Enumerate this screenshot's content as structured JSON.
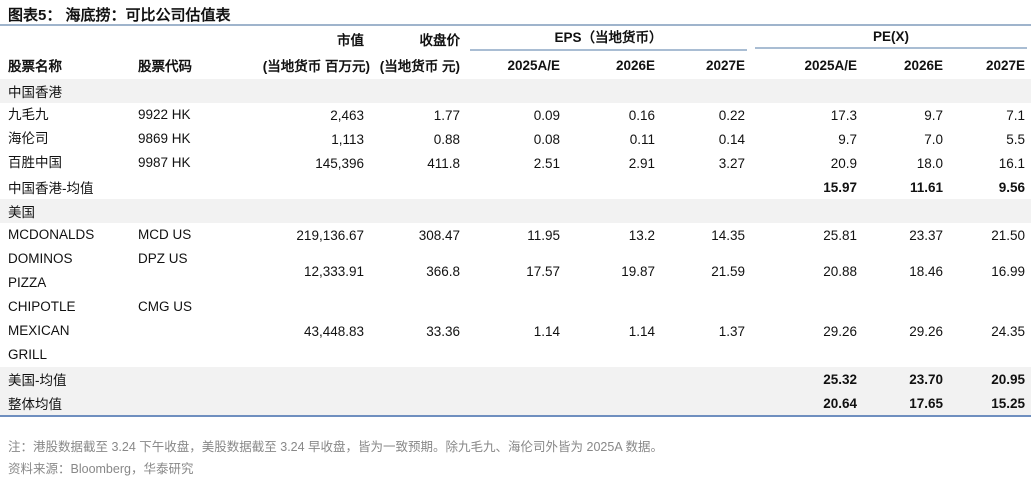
{
  "title": "图表5： 海底捞：可比公司估值表",
  "header": {
    "mktcap_top": "市值",
    "price_top": "收盘价",
    "eps_group": "EPS（当地货币）",
    "pe_group": "PE(X)",
    "name": "股票名称",
    "code": "股票代码",
    "mktcap": "(当地货币 百万元)",
    "price": "(当地货币 元)",
    "years": [
      "2025A/E",
      "2026E",
      "2027E"
    ]
  },
  "sections": [
    {
      "label": "中国香港",
      "rows": [
        {
          "name": [
            "九毛九"
          ],
          "code": "9922 HK",
          "mktcap": "2,463",
          "price": "1.77",
          "eps": [
            "0.09",
            "0.16",
            "0.22"
          ],
          "pe": [
            "17.3",
            "9.7",
            "7.1"
          ]
        },
        {
          "name": [
            "海伦司"
          ],
          "code": "9869 HK",
          "mktcap": "1,113",
          "price": "0.88",
          "eps": [
            "0.08",
            "0.11",
            "0.14"
          ],
          "pe": [
            "9.7",
            "7.0",
            "5.5"
          ]
        },
        {
          "name": [
            "百胜中国"
          ],
          "code": "9987 HK",
          "mktcap": "145,396",
          "price": "411.8",
          "eps": [
            "2.51",
            "2.91",
            "3.27"
          ],
          "pe": [
            "20.9",
            "18.0",
            "16.1"
          ]
        }
      ],
      "avg": {
        "label": "中国香港-均值",
        "pe": [
          "15.97",
          "11.61",
          "9.56"
        ]
      }
    },
    {
      "label": "美国",
      "rows": [
        {
          "name": [
            "MCDONALDS"
          ],
          "code": "MCD US",
          "mktcap": "219,136.67",
          "price": "308.47",
          "eps": [
            "11.95",
            "13.2",
            "14.35"
          ],
          "pe": [
            "25.81",
            "23.37",
            "21.50"
          ]
        },
        {
          "name": [
            "DOMINOS",
            "PIZZA"
          ],
          "code": "DPZ US",
          "mktcap": "12,333.91",
          "price": "366.8",
          "eps": [
            "17.57",
            "19.87",
            "21.59"
          ],
          "pe": [
            "20.88",
            "18.46",
            "16.99"
          ]
        },
        {
          "name": [
            "CHIPOTLE",
            "MEXICAN",
            "GRILL"
          ],
          "code": "CMG US",
          "mktcap": "43,448.83",
          "price": "33.36",
          "eps": [
            "1.14",
            "1.14",
            "1.37"
          ],
          "pe": [
            "29.26",
            "29.26",
            "24.35"
          ]
        }
      ],
      "avg": {
        "label": "美国-均值",
        "pe": [
          "25.32",
          "23.70",
          "20.95"
        ]
      }
    }
  ],
  "overall": {
    "label": "整体均值",
    "pe": [
      "20.64",
      "17.65",
      "15.25"
    ]
  },
  "note": "注：港股数据截至 3.24 下午收盘，美股数据截至 3.24 早收盘，皆为一致预期。除九毛九、海伦司外皆为 2025A 数据。",
  "source": "资料来源：Bloomberg，华泰研究"
}
